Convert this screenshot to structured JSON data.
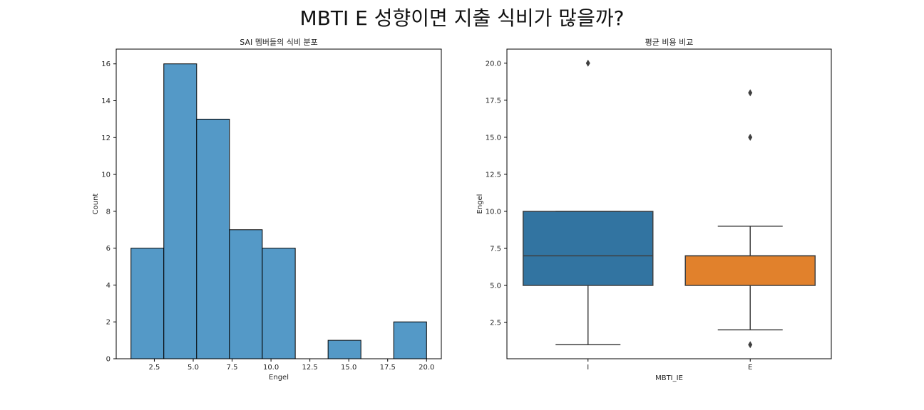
{
  "figure": {
    "suptitle": "MBTI E 성향이면 지출 식비가 많을까?"
  },
  "chart_data": [
    {
      "type": "histogram",
      "title": "SAI 멤버들의 식비 분포",
      "xlabel": "Engel",
      "ylabel": "Count",
      "xlim": [
        0.05,
        20.95
      ],
      "ylim": [
        0,
        16.8
      ],
      "xticks": [
        2.5,
        5.0,
        7.5,
        10.0,
        12.5,
        15.0,
        17.5,
        20.0
      ],
      "xtick_labels": [
        "2.5",
        "5.0",
        "7.5",
        "10.0",
        "12.5",
        "15.0",
        "17.5",
        "20.0"
      ],
      "yticks": [
        0,
        2,
        4,
        6,
        8,
        10,
        12,
        14,
        16
      ],
      "ytick_labels": [
        "0",
        "2",
        "4",
        "6",
        "8",
        "10",
        "12",
        "14",
        "16"
      ],
      "bins": [
        {
          "x0": 1.0,
          "x1": 3.11,
          "count": 6
        },
        {
          "x0": 3.11,
          "x1": 5.22,
          "count": 16
        },
        {
          "x0": 5.22,
          "x1": 7.33,
          "count": 13
        },
        {
          "x0": 7.33,
          "x1": 9.44,
          "count": 7
        },
        {
          "x0": 9.44,
          "x1": 11.56,
          "count": 6
        },
        {
          "x0": 11.56,
          "x1": 13.67,
          "count": 0
        },
        {
          "x0": 13.67,
          "x1": 15.78,
          "count": 1
        },
        {
          "x0": 15.78,
          "x1": 17.89,
          "count": 0
        },
        {
          "x0": 17.89,
          "x1": 20.0,
          "count": 2
        }
      ],
      "color": "#5499c7",
      "grid": false
    },
    {
      "type": "boxplot",
      "title": "평균 비용 비교",
      "xlabel": "MBTI_IE",
      "ylabel": "Engel",
      "ylim": [
        0.05,
        20.95
      ],
      "yticks": [
        2.5,
        5.0,
        7.5,
        10.0,
        12.5,
        15.0,
        17.5,
        20.0
      ],
      "ytick_labels": [
        "2.5",
        "5.0",
        "7.5",
        "10.0",
        "12.5",
        "15.0",
        "17.5",
        "20.0"
      ],
      "categories": [
        "I",
        "E"
      ],
      "boxes": [
        {
          "name": "I",
          "q1": 5.0,
          "median": 7.0,
          "q3": 10.0,
          "whislo": 1.0,
          "whishi": 10.0,
          "fliers": [
            20.0
          ],
          "color": "#3274a1"
        },
        {
          "name": "E",
          "q1": 5.0,
          "median": 7.0,
          "q3": 7.0,
          "whislo": 2.0,
          "whishi": 9.0,
          "fliers": [
            18.0,
            15.0,
            1.0
          ],
          "color": "#e1812c"
        }
      ],
      "grid": false
    }
  ]
}
